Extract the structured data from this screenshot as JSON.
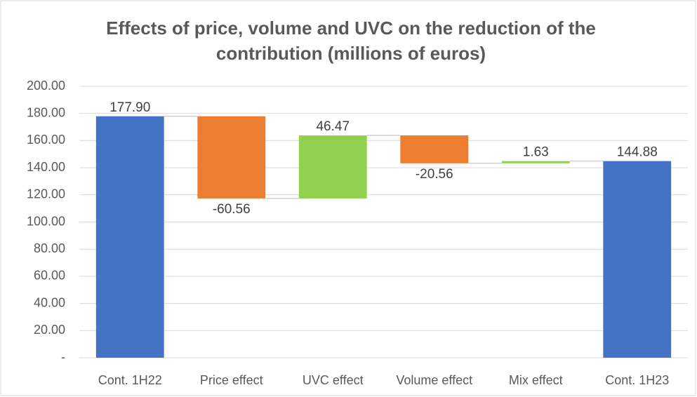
{
  "chart_data": {
    "type": "waterfall",
    "title": [
      "Effects of price, volume and UVC on the reduction of the",
      "contribution (millions of euros)"
    ],
    "categories": [
      "Cont. 1H22",
      "Price effect",
      "UVC effect",
      "Volume effect",
      "Mix effect",
      "Cont. 1H23"
    ],
    "values": [
      177.9,
      -60.56,
      46.47,
      -20.56,
      1.63,
      144.88
    ],
    "value_labels": [
      "177.90",
      "-60.56",
      "46.47",
      "-20.56",
      "1.63",
      "144.88"
    ],
    "is_total": [
      true,
      false,
      false,
      false,
      false,
      true
    ],
    "colors": [
      "#4472c4",
      "#ed7d31",
      "#92d050",
      "#ed7d31",
      "#92d050",
      "#4472c4"
    ],
    "ylim": [
      0,
      200
    ],
    "yticks": [
      {
        "value": 0,
        "label": "-"
      },
      {
        "value": 20,
        "label": "20.00"
      },
      {
        "value": 40,
        "label": "40.00"
      },
      {
        "value": 60,
        "label": "60.00"
      },
      {
        "value": 80,
        "label": "80.00"
      },
      {
        "value": 100,
        "label": "100.00"
      },
      {
        "value": 120,
        "label": "120.00"
      },
      {
        "value": 140,
        "label": "140.00"
      },
      {
        "value": 160,
        "label": "160.00"
      },
      {
        "value": 180,
        "label": "180.00"
      },
      {
        "value": 200,
        "label": "200.00"
      }
    ],
    "grid": true
  }
}
